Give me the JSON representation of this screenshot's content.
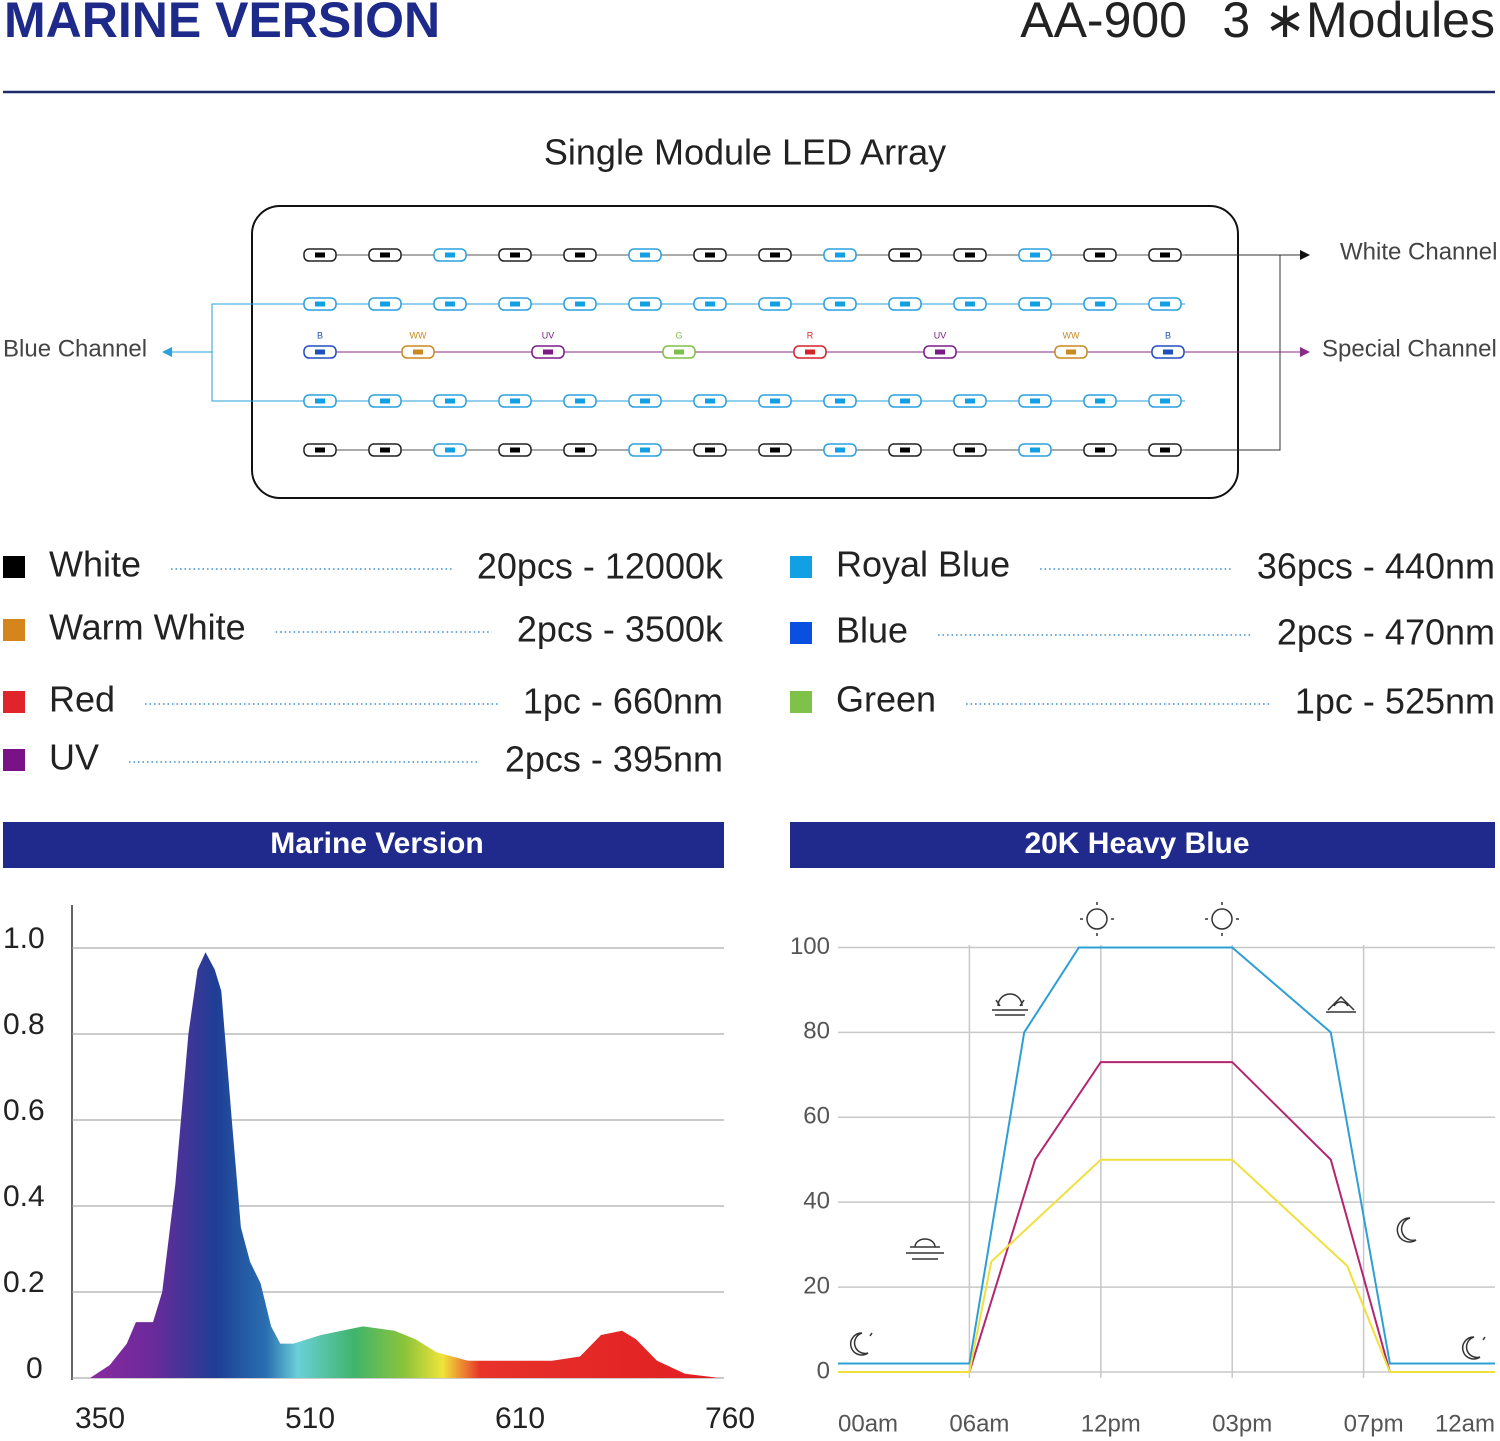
{
  "header": {
    "title": "MARINE VERSION",
    "model": "AA-900",
    "modules": "3 ∗Modules"
  },
  "led_array": {
    "title": "Single Module LED Array",
    "white_channel": "White Channel",
    "blue_channel": "Blue Channel",
    "special_channel": "Special Channel",
    "special": [
      {
        "label": "B",
        "color": "#1f4fbf"
      },
      {
        "label": "WW",
        "color": "#c98a20"
      },
      {
        "label": "UV",
        "color": "#7b1b86"
      },
      {
        "label": "G",
        "color": "#7dbf4a"
      },
      {
        "label": "R",
        "color": "#d3232b"
      },
      {
        "label": "UV",
        "color": "#7b1b86"
      },
      {
        "label": "WW",
        "color": "#c98a20"
      },
      {
        "label": "B",
        "color": "#1f4fbf"
      }
    ]
  },
  "legend": {
    "left": [
      {
        "name": "White",
        "spec": "20pcs - 12000k",
        "color": "#000000"
      },
      {
        "name": "Warm White",
        "spec": "2pcs - 3500k",
        "color": "#d4861c"
      },
      {
        "name": "Red",
        "spec": "1pc - 660nm",
        "color": "#e0242b"
      },
      {
        "name": "UV",
        "spec": "2pcs - 395nm",
        "color": "#7a1287"
      }
    ],
    "right": [
      {
        "name": "Royal Blue",
        "spec": "36pcs - 440nm",
        "color": "#12a0e4"
      },
      {
        "name": "Blue",
        "spec": "2pcs - 470nm",
        "color": "#0a4fe0"
      },
      {
        "name": "Green",
        "spec": "1pc - 525nm",
        "color": "#7fc24a"
      }
    ]
  },
  "chart_data": [
    {
      "type": "area",
      "title": "Marine Version",
      "x": [
        350,
        365,
        378,
        385,
        392,
        398,
        405,
        415,
        425,
        432,
        438,
        445,
        450,
        458,
        465,
        472,
        480,
        488,
        495,
        505,
        520,
        540,
        555,
        565,
        575,
        590,
        610,
        640,
        660,
        675,
        690,
        700,
        715,
        735,
        760
      ],
      "values": [
        0,
        0.03,
        0.08,
        0.13,
        0.13,
        0.13,
        0.2,
        0.45,
        0.8,
        0.95,
        0.99,
        0.95,
        0.9,
        0.6,
        0.35,
        0.27,
        0.22,
        0.12,
        0.08,
        0.08,
        0.1,
        0.12,
        0.11,
        0.09,
        0.06,
        0.04,
        0.04,
        0.04,
        0.05,
        0.1,
        0.11,
        0.09,
        0.04,
        0.01,
        0
      ],
      "xlim": [
        350,
        760
      ],
      "xticks": [
        350,
        510,
        610,
        760
      ],
      "ylim": [
        0,
        1.1
      ],
      "yticks": [
        0,
        0.2,
        0.4,
        0.6,
        0.8,
        {
          "value": 1,
          "label": "1.0"
        }
      ],
      "grid": true
    },
    {
      "type": "line",
      "title": "20K Heavy Blue",
      "xlim": [
        0,
        24
      ],
      "xticks": [
        {
          "value": 0,
          "label": "00am"
        },
        {
          "value": 6,
          "label": "06am"
        },
        {
          "value": 12,
          "label": "12pm"
        },
        {
          "value": 15,
          "label": "03pm"
        },
        {
          "value": 19,
          "label": "07pm"
        },
        {
          "value": 24,
          "label": "12am"
        }
      ],
      "ylim": [
        0,
        110
      ],
      "yticks": [
        0,
        20,
        40,
        60,
        80,
        100
      ],
      "grid": true,
      "series": [
        {
          "color": "#2e9fd4",
          "x": [
            0,
            6,
            8.5,
            11,
            15,
            18,
            20,
            24
          ],
          "values": [
            2,
            2,
            80,
            100,
            100,
            80,
            2,
            2
          ]
        },
        {
          "color": "#b3266f",
          "x": [
            0,
            6,
            9,
            12,
            15,
            18,
            20,
            24
          ],
          "values": [
            0,
            0,
            50,
            73,
            73,
            50,
            0,
            0
          ]
        },
        {
          "color": "#f0e03c",
          "x": [
            0,
            6,
            7,
            12,
            15,
            18.5,
            20,
            24
          ],
          "values": [
            0,
            0,
            26,
            50,
            50,
            25,
            0,
            0
          ]
        }
      ]
    }
  ]
}
